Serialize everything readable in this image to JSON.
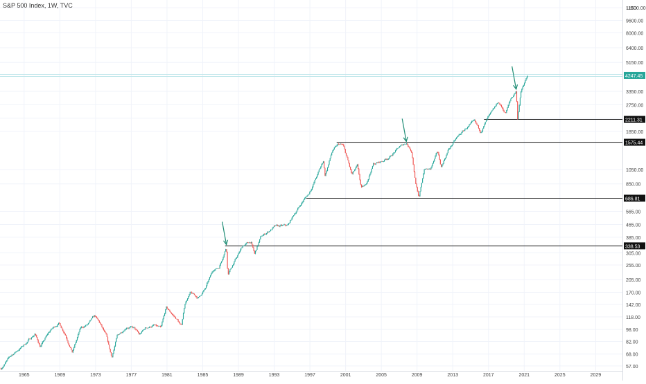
{
  "chart_data": {
    "type": "candlestick",
    "title": "S&P 500 Index, 1W, TVC",
    "y_unit": "USD",
    "y_scale": "log",
    "ylim": [
      53,
      13000
    ],
    "xlim": [
      1962.3,
      2032.0
    ],
    "current_price": "4247.45",
    "price_ticks": [
      "11600.00",
      "9600.00",
      "8000.00",
      "6400.00",
      "5150.00",
      "3350.00",
      "2750.00",
      "2250.00",
      "1850.00",
      "1050.00",
      "850.00",
      "565.00",
      "465.00",
      "385.00",
      "305.00",
      "255.00",
      "205.00",
      "170.00",
      "142.00",
      "118.00",
      "98.00",
      "82.00",
      "68.00",
      "57.00"
    ],
    "time_ticks": [
      "1965",
      "1969",
      "1973",
      "1977",
      "1981",
      "1985",
      "1989",
      "1993",
      "1997",
      "2001",
      "2005",
      "2009",
      "2013",
      "2017",
      "2021",
      "2025",
      "2029"
    ],
    "levels": [
      {
        "value": 2211.31,
        "label": "2211.31",
        "start": 2016.5
      },
      {
        "value": 1575.44,
        "label": "1575.44",
        "start": 2000.0
      },
      {
        "value": 686.81,
        "label": "686.81",
        "start": 1996.6
      },
      {
        "value": 338.53,
        "label": "338.53",
        "start": 1987.5
      }
    ],
    "arrows": [
      {
        "date": 1987.65,
        "value": 338
      },
      {
        "date": 2007.8,
        "value": 1560
      },
      {
        "date": 2020.1,
        "value": 3390
      }
    ],
    "price_path": [
      [
        1962.4,
        55
      ],
      [
        1963.5,
        66
      ],
      [
        1965.0,
        78
      ],
      [
        1966.2,
        92
      ],
      [
        1966.8,
        76
      ],
      [
        1967.9,
        96
      ],
      [
        1968.9,
        108
      ],
      [
        1969.6,
        92
      ],
      [
        1970.4,
        70
      ],
      [
        1971.3,
        99
      ],
      [
        1972.2,
        106
      ],
      [
        1972.9,
        119
      ],
      [
        1973.5,
        106
      ],
      [
        1974.2,
        88
      ],
      [
        1974.8,
        64
      ],
      [
        1975.4,
        88
      ],
      [
        1976.5,
        103
      ],
      [
        1977.3,
        100
      ],
      [
        1977.9,
        90
      ],
      [
        1978.6,
        100
      ],
      [
        1979.5,
        104
      ],
      [
        1980.2,
        100
      ],
      [
        1980.3,
        98
      ],
      [
        1980.9,
        134
      ],
      [
        1981.5,
        124
      ],
      [
        1982.2,
        112
      ],
      [
        1982.6,
        102
      ],
      [
        1983.0,
        145
      ],
      [
        1983.6,
        168
      ],
      [
        1984.5,
        156
      ],
      [
        1985.3,
        180
      ],
      [
        1986.2,
        238
      ],
      [
        1986.8,
        245
      ],
      [
        1987.65,
        336
      ],
      [
        1987.8,
        225
      ],
      [
        1988.5,
        265
      ],
      [
        1989.5,
        340
      ],
      [
        1990.4,
        360
      ],
      [
        1990.8,
        298
      ],
      [
        1991.5,
        385
      ],
      [
        1993.0,
        448
      ],
      [
        1994.5,
        455
      ],
      [
        1995.4,
        560
      ],
      [
        1996.3,
        670
      ],
      [
        1996.9,
        740
      ],
      [
        1997.8,
        960
      ],
      [
        1998.5,
        1190
      ],
      [
        1998.7,
        960
      ],
      [
        1999.5,
        1380
      ],
      [
        2000.2,
        1520
      ],
      [
        2000.7,
        1500
      ],
      [
        2001.2,
        1220
      ],
      [
        2001.7,
        965
      ],
      [
        2002.3,
        1100
      ],
      [
        2002.75,
        790
      ],
      [
        2003.2,
        820
      ],
      [
        2004.1,
        1140
      ],
      [
        2005.0,
        1180
      ],
      [
        2006.0,
        1280
      ],
      [
        2007.0,
        1460
      ],
      [
        2007.8,
        1565
      ],
      [
        2008.4,
        1380
      ],
      [
        2008.8,
        900
      ],
      [
        2009.2,
        676
      ],
      [
        2009.8,
        1060
      ],
      [
        2010.5,
        1050
      ],
      [
        2011.3,
        1360
      ],
      [
        2011.7,
        1090
      ],
      [
        2012.5,
        1410
      ],
      [
        2013.5,
        1690
      ],
      [
        2014.5,
        1940
      ],
      [
        2015.4,
        2120
      ],
      [
        2016.1,
        1830
      ],
      [
        2016.9,
        2240
      ],
      [
        2017.5,
        2480
      ],
      [
        2018.1,
        2850
      ],
      [
        2018.9,
        2420
      ],
      [
        2019.5,
        2990
      ],
      [
        2020.1,
        3380
      ],
      [
        2020.25,
        2240
      ],
      [
        2020.6,
        3300
      ],
      [
        2021.05,
        3800
      ],
      [
        2021.4,
        4247
      ]
    ]
  }
}
